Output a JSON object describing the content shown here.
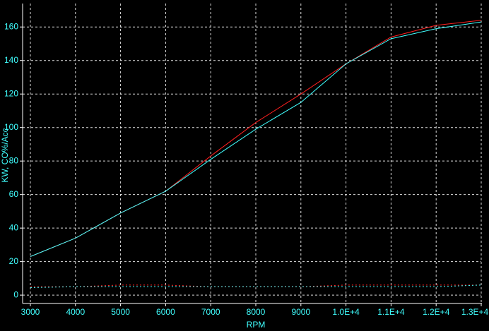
{
  "chart_data": {
    "type": "line",
    "x_label": "RPM",
    "y_label": "KW, CO%/Acc",
    "x": [
      3000,
      4000,
      5000,
      6000,
      7000,
      8000,
      9000,
      10000,
      11000,
      12000,
      13000
    ],
    "series": [
      {
        "color": "#ff2020",
        "dashed": false,
        "values": [
          23,
          34,
          49,
          62,
          83,
          103,
          120,
          138,
          154,
          161,
          164
        ]
      },
      {
        "color": "#40ffff",
        "dashed": false,
        "values": [
          23,
          34,
          49,
          62,
          81,
          99,
          115,
          138,
          153,
          159,
          163
        ]
      },
      {
        "color": "#ff2020",
        "dashed": true,
        "values": [
          5,
          5,
          6,
          6,
          5,
          5,
          5,
          6,
          6,
          6,
          6
        ]
      },
      {
        "color": "#40ffff",
        "dashed": true,
        "values": [
          4.5,
          5,
          5,
          5,
          5,
          5,
          5,
          5,
          5,
          5,
          6
        ]
      }
    ],
    "xlim": [
      3000,
      13000
    ],
    "ylim": [
      -5,
      174
    ],
    "xticks": [
      3000,
      4000,
      5000,
      6000,
      7000,
      8000,
      9000,
      {
        "value": 10000,
        "label": "1.0E+4"
      },
      {
        "value": 11000,
        "label": "1.1E+4"
      },
      {
        "value": 12000,
        "label": "1.2E+4"
      },
      {
        "value": 13000,
        "label": "1.3E+4"
      }
    ],
    "yticks": [
      0,
      20,
      40,
      60,
      80,
      100,
      120,
      140,
      160
    ],
    "grid": true
  }
}
